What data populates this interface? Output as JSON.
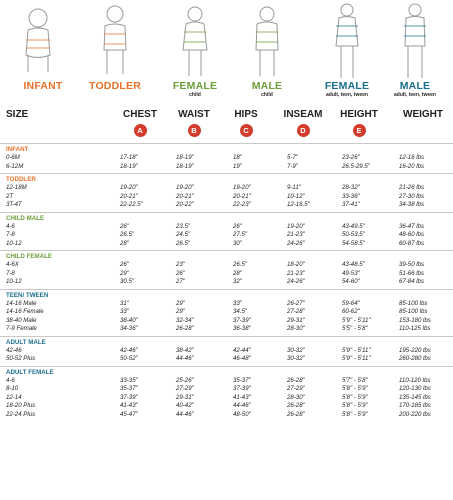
{
  "figures": [
    {
      "label": "INFANT",
      "sub": "",
      "color": "#e8712a"
    },
    {
      "label": "TODDLER",
      "sub": "",
      "color": "#e8712a"
    },
    {
      "label": "FEMALE",
      "sub": "child",
      "color": "#6c9e3a"
    },
    {
      "label": "MALE",
      "sub": "child",
      "color": "#6c9e3a"
    },
    {
      "label": "FEMALE",
      "sub": "adult, teen, tween",
      "color": "#1a6f8c"
    },
    {
      "label": "MALE",
      "sub": "adult, teen, tween",
      "color": "#1a6f8c"
    }
  ],
  "header": {
    "size": "SIZE",
    "columns": [
      {
        "label": "CHEST",
        "badge": "A"
      },
      {
        "label": "WAIST",
        "badge": "B"
      },
      {
        "label": "HIPS",
        "badge": "C"
      },
      {
        "label": "INSEAM",
        "badge": "D"
      },
      {
        "label": "HEIGHT",
        "badge": "E"
      },
      {
        "label": "WEIGHT",
        "badge": ""
      }
    ]
  },
  "sections": [
    {
      "title": "INFANT",
      "color": "#e8712a",
      "rows": [
        [
          "0-6M",
          "17-18\"",
          "18-19\"",
          "18\"",
          "5-7\"",
          "23-26\"",
          "12-16 lbs"
        ],
        [
          "6-12M",
          "18-19\"",
          "18-19\"",
          "19\"",
          "7-9\"",
          "26.5-29.5\"",
          "16-20 lbs"
        ]
      ]
    },
    {
      "title": "TODDLER",
      "color": "#e8712a",
      "rows": [
        [
          "12-18M",
          "19-20\"",
          "19-20\"",
          "19-20\"",
          "9-11\"",
          "28-32\"",
          "21-26 lbs"
        ],
        [
          "2T",
          "20-21\"",
          "20-21\"",
          "20-21\"",
          "10-12\"",
          "33-36\"",
          "27-30 lbs"
        ],
        [
          "3T-4T",
          "22-22.5\"",
          "20-22\"",
          "22-23\"",
          "12-16.5\"",
          "37-41\"",
          "34-38 lbs"
        ]
      ]
    },
    {
      "title": "CHILD MALE",
      "color": "#6c9e3a",
      "rows": [
        [
          "4-6",
          "26\"",
          "23.5\"",
          "26\"",
          "19-20\"",
          "43-49.5\"",
          "36-47 lbs"
        ],
        [
          "7-8",
          "26.5\"",
          "24.5\"",
          "27.5\"",
          "21-23\"",
          "50-53.5\"",
          "48-60 lbs"
        ],
        [
          "10-12",
          "28\"",
          "26.5\"",
          "30\"",
          "24-26\"",
          "54-58.5\"",
          "60-87 lbs"
        ]
      ]
    },
    {
      "title": "CHILD FEMALE",
      "color": "#6c9e3a",
      "rows": [
        [
          "4-6X",
          "26\"",
          "23\"",
          "26.5\"",
          "18-20\"",
          "43-48.5\"",
          "39-50 lbs"
        ],
        [
          "7-8",
          "29\"",
          "26\"",
          "28\"",
          "21-23\"",
          "49-53\"",
          "51-66 lbs"
        ],
        [
          "10-12",
          "30.5\"",
          "27\"",
          "32\"",
          "24-26\"",
          "54-60\"",
          "67-84 lbs"
        ]
      ]
    },
    {
      "title": "TEEN/ TWEEN",
      "color": "#1a6f8c",
      "rows": [
        [
          "14-16 Male",
          "31\"",
          "29\"",
          "33\"",
          "26-27\"",
          "59-64\"",
          "85-100 lbs"
        ],
        [
          "14-16 Female",
          "33\"",
          "29\"",
          "34.5\"",
          "27-28\"",
          "60-62\"",
          "85-100 lbs"
        ],
        [
          "38-40 Male",
          "38-40\"",
          "32-34\"",
          "37-39\"",
          "29-31\"",
          "5'9\" - 5'11\"",
          "153-180 lbs"
        ],
        [
          "7-9 Female",
          "34-36\"",
          "26-28\"",
          "36-38\"",
          "28-30\"",
          "5'5\" - 5'8\"",
          "110-125 lbs"
        ]
      ]
    },
    {
      "title": "ADULT MALE",
      "color": "#1a6f8c",
      "rows": [
        [
          "42-46",
          "42-46\"",
          "38-42\"",
          "42-44\"",
          "30-32\"",
          "5'9\" - 5'11\"",
          "195-220 lbs"
        ],
        [
          "50-52 Plus",
          "50-52\"",
          "44-46\"",
          "46-48\"",
          "30-32\"",
          "5'9\" - 5'11\"",
          "260-280 lbs"
        ]
      ]
    },
    {
      "title": "ADULT FEMALE",
      "color": "#1a6f8c",
      "rows": [
        [
          "4-6",
          "33-35\"",
          "25-26\"",
          "35-37\"",
          "26-28\"",
          "5'7\" - 5'8\"",
          "110-120 lbs"
        ],
        [
          "8-10",
          "35-37\"",
          "27-29\"",
          "37-39\"",
          "27-29\"",
          "5'8\" - 5'9\"",
          "120-130 lbs"
        ],
        [
          "12-14",
          "37-39\"",
          "29-31\"",
          "41-43\"",
          "28-30\"",
          "5'8\" - 5'9\"",
          "135-145 lbs"
        ],
        [
          "18-20 Plus",
          "41-43\"",
          "40-42\"",
          "44-46\"",
          "26-28\"",
          "5'8\" - 5'9\"",
          "170-185 lbs"
        ],
        [
          "22-24 Plus",
          "45-47\"",
          "44-46\"",
          "48-50\"",
          "26-28\"",
          "5'8\" - 5'9\"",
          "200-220 lbs"
        ]
      ]
    }
  ]
}
